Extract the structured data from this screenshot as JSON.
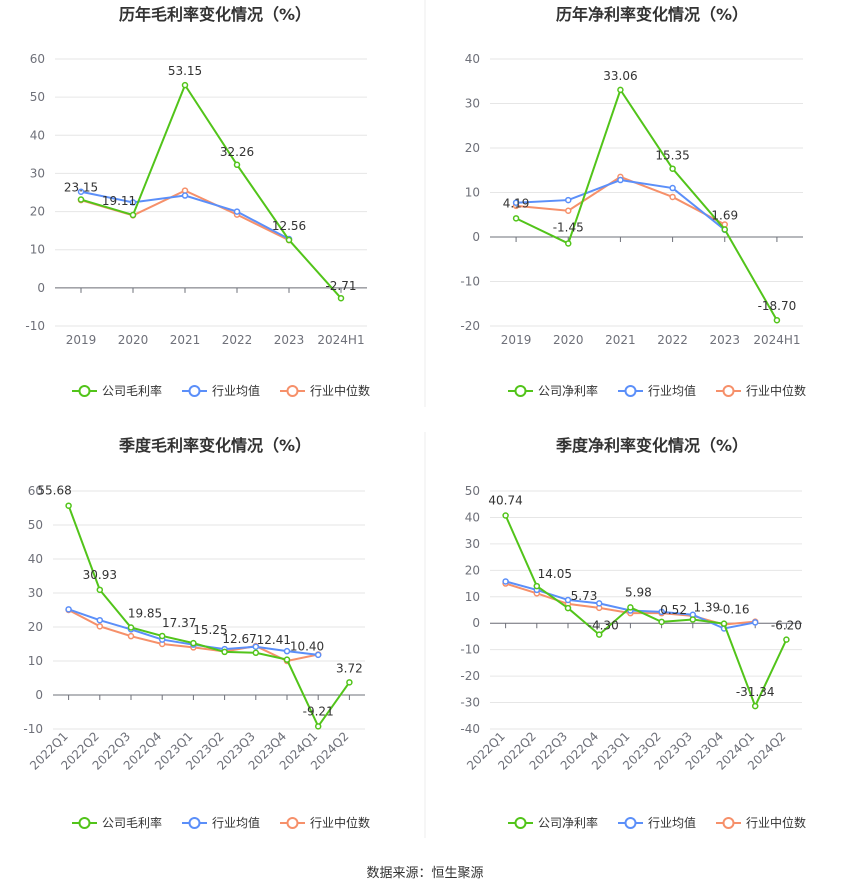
{
  "source": "数据来源：恒生聚源",
  "legend_colors": [
    "#52c41a",
    "#5b8ff9",
    "#f6906a"
  ],
  "chart_data": [
    {
      "type": "line",
      "title": "历年毛利率变化情况（%）",
      "categories": [
        "2019",
        "2020",
        "2021",
        "2022",
        "2023",
        "2024H1"
      ],
      "ylim": [
        -10,
        60
      ],
      "yticks": [
        -10,
        0,
        10,
        20,
        30,
        40,
        50,
        60
      ],
      "label_series": 0,
      "series": [
        {
          "name": "公司毛利率",
          "values": [
            23.15,
            19.11,
            53.15,
            32.26,
            12.56,
            -2.71
          ],
          "labels": [
            "23.15",
            "19.11",
            "53.15",
            "32.26",
            "12.56",
            "-2.71"
          ]
        },
        {
          "name": "行业均值",
          "values": [
            25.2,
            22.4,
            24.2,
            20.0,
            12.8,
            null
          ]
        },
        {
          "name": "行业中位数",
          "values": [
            23.0,
            19.0,
            25.5,
            19.2,
            12.5,
            null
          ]
        }
      ]
    },
    {
      "type": "line",
      "title": "历年净利率变化情况（%）",
      "categories": [
        "2019",
        "2020",
        "2021",
        "2022",
        "2023",
        "2024H1"
      ],
      "ylim": [
        -20,
        40
      ],
      "yticks": [
        -20,
        -10,
        0,
        10,
        20,
        30,
        40
      ],
      "label_series": 0,
      "series": [
        {
          "name": "公司净利率",
          "values": [
            4.19,
            -1.45,
            33.06,
            15.35,
            1.69,
            -18.7
          ],
          "labels": [
            "4.19",
            "-1.45",
            "33.06",
            "15.35",
            "1.69",
            "-18.70"
          ]
        },
        {
          "name": "行业均值",
          "values": [
            7.7,
            8.3,
            12.8,
            11.0,
            1.6,
            null
          ]
        },
        {
          "name": "行业中位数",
          "values": [
            7.0,
            5.9,
            13.5,
            9.0,
            2.8,
            null
          ]
        }
      ]
    },
    {
      "type": "line",
      "title": "季度毛利率变化情况（%）",
      "categories": [
        "2022Q1",
        "2022Q2",
        "2022Q3",
        "2022Q4",
        "2023Q1",
        "2023Q2",
        "2023Q3",
        "2023Q4",
        "2024Q1",
        "2024Q2"
      ],
      "ylim": [
        -10,
        60
      ],
      "yticks": [
        -10,
        0,
        10,
        20,
        30,
        40,
        50,
        60
      ],
      "label_series": 0,
      "series": [
        {
          "name": "公司毛利率",
          "values": [
            55.68,
            30.93,
            19.85,
            17.37,
            15.25,
            12.67,
            12.41,
            10.4,
            -9.21,
            3.72
          ],
          "labels": [
            "55.68",
            "30.93",
            "19.85",
            "17.37",
            "15.25",
            "12.67",
            "12.41",
            "10.40",
            "-9.21",
            "3.72"
          ]
        },
        {
          "name": "行业均值",
          "values": [
            25.2,
            22.0,
            19.3,
            16.3,
            14.8,
            13.5,
            14.2,
            12.9,
            11.8,
            null
          ]
        },
        {
          "name": "行业中位数",
          "values": [
            25.0,
            20.2,
            17.3,
            15.0,
            14.0,
            12.8,
            14.4,
            10.0,
            11.9,
            null
          ]
        }
      ]
    },
    {
      "type": "line",
      "title": "季度净利率变化情况（%）",
      "categories": [
        "2022Q1",
        "2022Q2",
        "2022Q3",
        "2022Q4",
        "2023Q1",
        "2023Q2",
        "2023Q3",
        "2023Q4",
        "2024Q1",
        "2024Q2"
      ],
      "ylim": [
        -40,
        50
      ],
      "yticks": [
        -40,
        -30,
        -20,
        -10,
        0,
        10,
        20,
        30,
        40,
        50
      ],
      "label_series": 0,
      "series": [
        {
          "name": "公司净利率",
          "values": [
            40.74,
            14.05,
            5.73,
            -4.3,
            5.98,
            0.52,
            1.39,
            -0.16,
            -31.34,
            -6.2
          ],
          "labels": [
            "40.74",
            "14.05",
            "5.73",
            "-4.30",
            "5.98",
            "0.52",
            "1.39",
            "-0.16",
            "-31.34",
            "-6.20"
          ]
        },
        {
          "name": "行业均值",
          "values": [
            15.8,
            12.6,
            8.8,
            7.5,
            4.8,
            4.3,
            3.2,
            -2.0,
            0.3,
            null
          ]
        },
        {
          "name": "行业中位数",
          "values": [
            15.0,
            11.3,
            7.3,
            5.8,
            3.8,
            3.8,
            2.8,
            -0.5,
            0.6,
            null
          ]
        }
      ]
    }
  ]
}
